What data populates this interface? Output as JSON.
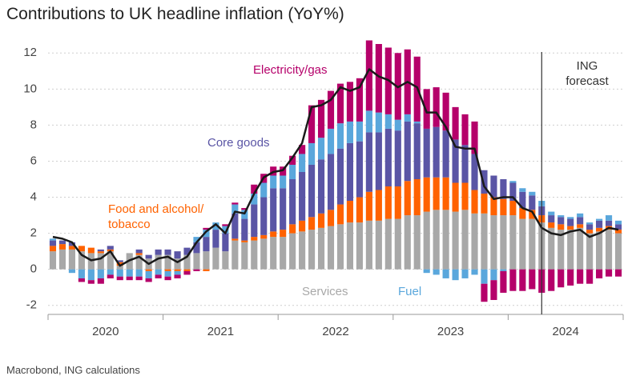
{
  "chart_data": {
    "type": "stacked_bar_line",
    "title": "Contributions to UK headline inflation (YoY%)",
    "source": "Macrobond, ING calculations",
    "forecast_label": "ING forecast",
    "categories": [
      null,
      null,
      null,
      null,
      null,
      null,
      "2020",
      null,
      null,
      null,
      null,
      null,
      null,
      null,
      null,
      null,
      null,
      null,
      "2021",
      null,
      null,
      null,
      null,
      null,
      null,
      null,
      null,
      null,
      null,
      null,
      "2022",
      null,
      null,
      null,
      null,
      null,
      null,
      null,
      null,
      null,
      null,
      null,
      "2023",
      null,
      null,
      null,
      null,
      null,
      null,
      null,
      null,
      null,
      null,
      null,
      "2024",
      null,
      null,
      null,
      null,
      null
    ],
    "ylim": [
      -2.5,
      12.5
    ],
    "yticks": [
      -2,
      0,
      2,
      4,
      6,
      8,
      10,
      12
    ],
    "grid": true,
    "series": [
      {
        "name": "Services",
        "color": "#a8a8a8",
        "values": [
          1.0,
          1.1,
          1.1,
          1.0,
          0.9,
          0.9,
          1.0,
          0.2,
          0.9,
          0.8,
          0.6,
          0.8,
          0.8,
          0.6,
          0.8,
          0.9,
          1.0,
          1.2,
          1.0,
          1.6,
          1.5,
          1.6,
          1.7,
          1.8,
          1.8,
          2.0,
          2.1,
          2.2,
          2.3,
          2.4,
          2.5,
          2.6,
          2.6,
          2.7,
          2.7,
          2.8,
          2.8,
          3.0,
          3.0,
          3.2,
          3.3,
          3.3,
          3.2,
          3.3,
          3.1,
          3.1,
          3.0,
          3.0,
          3.0,
          2.8,
          2.8,
          2.6,
          2.3,
          2.2,
          2.2,
          2.3,
          2.0,
          2.1,
          2.2,
          2.0
        ]
      },
      {
        "name": "Food and alcohol/ tobacco",
        "color": "#ff6200",
        "values": [
          0.3,
          0.3,
          0.2,
          0.3,
          0.3,
          0.1,
          0.1,
          0.2,
          0.0,
          0.1,
          -0.1,
          0.0,
          -0.1,
          -0.1,
          -0.1,
          0.0,
          -0.1,
          0.0,
          0.0,
          0.1,
          0.1,
          0.2,
          0.2,
          0.3,
          0.4,
          0.5,
          0.6,
          0.7,
          0.8,
          0.9,
          1.1,
          1.2,
          1.4,
          1.6,
          1.7,
          1.8,
          1.8,
          1.9,
          2.0,
          1.9,
          1.8,
          1.8,
          1.6,
          1.5,
          1.3,
          1.1,
          1.0,
          0.9,
          0.8,
          0.6,
          0.5,
          0.4,
          0.3,
          0.3,
          0.2,
          0.2,
          0.2,
          0.2,
          0.2,
          0.2
        ]
      },
      {
        "name": "Core goods",
        "color": "#5a55a5",
        "values": [
          0.3,
          0.2,
          0.2,
          0.0,
          0.0,
          0.1,
          0.2,
          0.1,
          0.0,
          0.2,
          0.2,
          0.3,
          0.3,
          0.4,
          0.4,
          0.6,
          0.8,
          1.0,
          1.0,
          1.4,
          1.2,
          1.8,
          2.1,
          2.4,
          2.3,
          2.5,
          2.7,
          2.9,
          3.0,
          3.1,
          3.1,
          3.2,
          3.1,
          3.3,
          3.2,
          3.2,
          3.1,
          3.3,
          3.1,
          2.7,
          2.8,
          2.6,
          2.4,
          2.1,
          2.0,
          1.3,
          1.2,
          1.1,
          1.0,
          0.9,
          0.8,
          0.5,
          0.4,
          0.4,
          0.4,
          0.4,
          0.3,
          0.4,
          0.3,
          0.3
        ]
      },
      {
        "name": "Fuel",
        "color": "#5aa7dc",
        "values": [
          0.1,
          0.0,
          -0.2,
          -0.5,
          -0.6,
          -0.5,
          -0.3,
          -0.4,
          -0.4,
          -0.4,
          -0.4,
          -0.3,
          -0.3,
          -0.2,
          0.0,
          0.3,
          0.4,
          0.4,
          0.4,
          0.5,
          0.5,
          0.6,
          0.8,
          0.7,
          0.7,
          0.8,
          1.0,
          1.2,
          1.2,
          1.4,
          1.4,
          1.2,
          1.1,
          1.2,
          1.1,
          0.8,
          0.6,
          0.4,
          0.1,
          -0.2,
          -0.3,
          -0.5,
          -0.6,
          -0.5,
          -0.3,
          -0.8,
          -0.6,
          -0.1,
          0.1,
          0.2,
          0.2,
          0.3,
          0.2,
          0.1,
          0.1,
          0.2,
          0.1,
          0.1,
          0.3,
          0.2
        ]
      },
      {
        "name": "Electricity/gas",
        "color": "#b5006a",
        "values": [
          0.0,
          0.0,
          0.0,
          -0.2,
          -0.2,
          -0.3,
          -0.2,
          -0.2,
          -0.2,
          -0.2,
          -0.2,
          -0.2,
          -0.2,
          -0.2,
          -0.2,
          -0.1,
          0.1,
          0.0,
          0.1,
          0.1,
          0.1,
          0.5,
          0.5,
          0.5,
          0.5,
          0.5,
          0.5,
          2.1,
          2.1,
          2.1,
          2.2,
          2.2,
          2.4,
          3.9,
          3.8,
          3.7,
          3.7,
          3.6,
          3.6,
          2.2,
          2.2,
          2.1,
          1.8,
          1.7,
          1.8,
          -1.0,
          -1.1,
          -1.2,
          -1.2,
          -1.2,
          -1.1,
          -1.3,
          -1.2,
          -1.0,
          -0.9,
          -0.8,
          -0.8,
          -0.5,
          -0.4,
          -0.4
        ]
      }
    ],
    "line": {
      "name": "Headline",
      "color": "#1a1a1a",
      "values": [
        1.8,
        1.7,
        1.5,
        0.8,
        0.5,
        0.6,
        1.0,
        0.2,
        0.5,
        0.7,
        0.3,
        0.6,
        0.7,
        0.4,
        0.7,
        1.5,
        2.1,
        2.5,
        2.0,
        3.2,
        3.1,
        4.2,
        5.1,
        5.4,
        5.5,
        6.2,
        7.0,
        9.0,
        9.1,
        9.4,
        10.1,
        9.9,
        10.1,
        11.1,
        10.7,
        10.5,
        10.1,
        10.4,
        10.1,
        8.7,
        8.7,
        7.9,
        6.8,
        6.7,
        6.7,
        4.6,
        3.9,
        4.0,
        4.0,
        3.4,
        3.2,
        2.3,
        2.0,
        1.9,
        2.1,
        2.2,
        1.8,
        2.0,
        2.3,
        2.2
      ]
    }
  }
}
